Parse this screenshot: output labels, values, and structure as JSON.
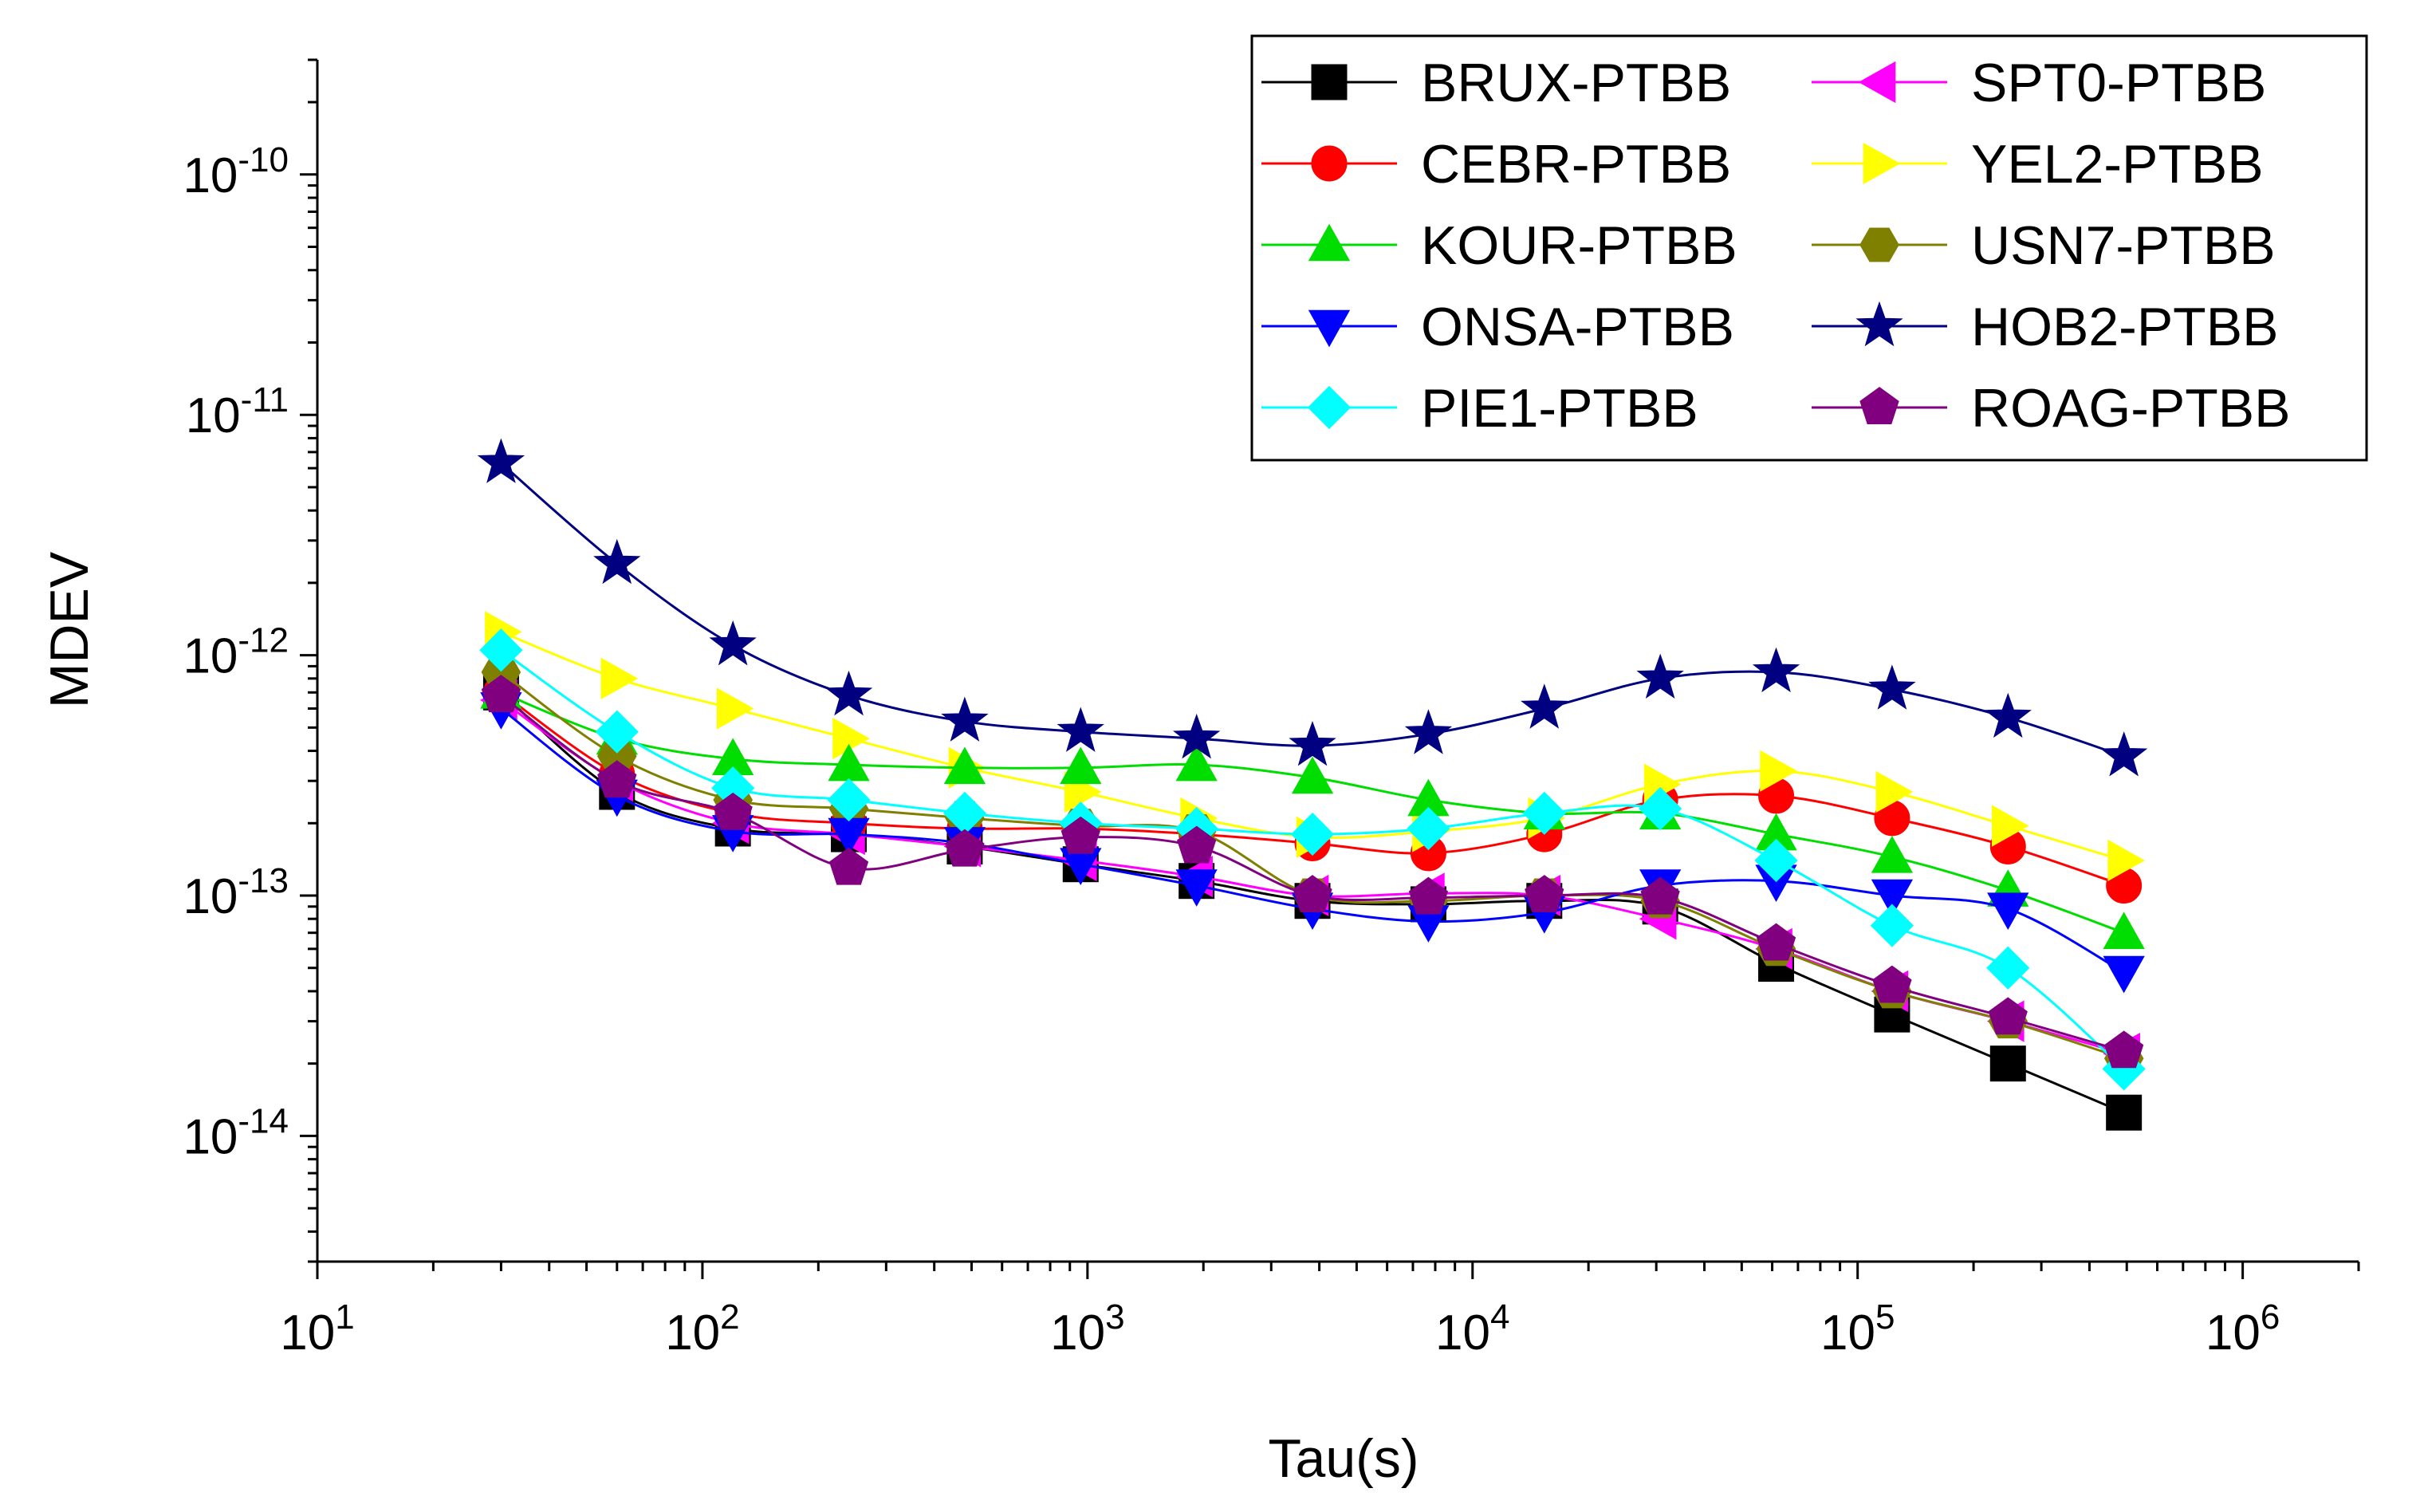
{
  "chart_data": {
    "type": "line",
    "xlabel": "Tau(s)",
    "ylabel": "MDEV",
    "xscale": "log",
    "yscale": "log",
    "xlim": [
      10,
      2000000
    ],
    "ylim": [
      3e-15,
      3e-10
    ],
    "x_ticks": [
      {
        "base": "10",
        "exp": "1"
      },
      {
        "base": "10",
        "exp": "2"
      },
      {
        "base": "10",
        "exp": "3"
      },
      {
        "base": "10",
        "exp": "4"
      },
      {
        "base": "10",
        "exp": "5"
      },
      {
        "base": "10",
        "exp": "6"
      }
    ],
    "y_ticks": [
      {
        "base": "10",
        "exp": "-14"
      },
      {
        "base": "10",
        "exp": "-13"
      },
      {
        "base": "10",
        "exp": "-12"
      },
      {
        "base": "10",
        "exp": "-11"
      },
      {
        "base": "10",
        "exp": "-10"
      }
    ],
    "x": [
      30,
      60,
      120,
      240,
      480,
      960,
      1920,
      3840,
      7680,
      15360,
      30720,
      61440,
      122880,
      245760,
      491520
    ],
    "legend_position": "top-right",
    "series": [
      {
        "name": "BRUX-PTBB",
        "color": "#000000",
        "marker": "square",
        "values": [
          7e-13,
          2.7e-13,
          1.9e-13,
          1.8e-13,
          1.6e-13,
          1.35e-13,
          1.15e-13,
          9.5e-14,
          9.2e-14,
          9.5e-14,
          9e-14,
          5.2e-14,
          3.2e-14,
          2e-14,
          1.25e-14
        ]
      },
      {
        "name": "SPT0-PTBB",
        "color": "#FF00FF",
        "marker": "triangle-left",
        "values": [
          6.5e-13,
          3e-13,
          2e-13,
          1.8e-13,
          1.6e-13,
          1.4e-13,
          1.2e-13,
          1e-13,
          1.02e-13,
          1e-13,
          8e-14,
          6e-14,
          4e-14,
          3e-14,
          2.2e-14
        ]
      },
      {
        "name": "CEBR-PTBB",
        "color": "#FF0000",
        "marker": "circle",
        "values": [
          7e-13,
          3.2e-13,
          2.2e-13,
          2e-13,
          1.9e-13,
          1.9e-13,
          1.8e-13,
          1.65e-13,
          1.5e-13,
          1.8e-13,
          2.5e-13,
          2.6e-13,
          2.1e-13,
          1.6e-13,
          1.1e-13
        ]
      },
      {
        "name": "YEL2-PTBB",
        "color": "#FFFF00",
        "marker": "triangle-right",
        "values": [
          1.25e-12,
          8e-13,
          6e-13,
          4.5e-13,
          3.4e-13,
          2.7e-13,
          2.1e-13,
          1.75e-13,
          1.85e-13,
          2.1e-13,
          2.9e-13,
          3.3e-13,
          2.7e-13,
          1.95e-13,
          1.4e-13
        ]
      },
      {
        "name": "KOUR-PTBB",
        "color": "#00DD00",
        "marker": "triangle-up",
        "values": [
          7e-13,
          4.5e-13,
          3.7e-13,
          3.5e-13,
          3.4e-13,
          3.4e-13,
          3.5e-13,
          3.1e-13,
          2.5e-13,
          2.2e-13,
          2.2e-13,
          1.8e-13,
          1.45e-13,
          1.05e-13,
          7e-14
        ]
      },
      {
        "name": "USN7-PTBB",
        "color": "#808000",
        "marker": "hexagon",
        "values": [
          8.5e-13,
          3.8e-13,
          2.5e-13,
          2.3e-13,
          2.1e-13,
          1.95e-13,
          1.85e-13,
          1e-13,
          9.5e-14,
          1e-13,
          9.5e-14,
          6e-14,
          4e-14,
          3e-14,
          2.1e-14
        ]
      },
      {
        "name": "ONSA-PTBB",
        "color": "#0000FF",
        "marker": "triangle-down",
        "values": [
          6e-13,
          2.6e-13,
          1.85e-13,
          1.8e-13,
          1.65e-13,
          1.35e-13,
          1.1e-13,
          8.8e-14,
          7.8e-14,
          8.5e-14,
          1.1e-13,
          1.15e-13,
          1e-13,
          8.8e-14,
          4.8e-14
        ]
      },
      {
        "name": "HOB2-PTBB",
        "color": "#000080",
        "marker": "star",
        "values": [
          6.3e-12,
          2.4e-12,
          1.1e-12,
          6.8e-13,
          5.3e-13,
          4.8e-13,
          4.5e-13,
          4.2e-13,
          4.7e-13,
          6e-13,
          8e-13,
          8.5e-13,
          7.2e-13,
          5.5e-13,
          3.8e-13
        ]
      },
      {
        "name": "PIE1-PTBB",
        "color": "#00FFFF",
        "marker": "diamond",
        "values": [
          1.05e-12,
          4.8e-13,
          2.8e-13,
          2.5e-13,
          2.2e-13,
          2e-13,
          1.9e-13,
          1.8e-13,
          1.9e-13,
          2.2e-13,
          2.3e-13,
          1.4e-13,
          7.5e-14,
          5e-14,
          1.9e-14
        ]
      },
      {
        "name": "ROAG-PTBB",
        "color": "#800080",
        "marker": "pentagon",
        "values": [
          6.8e-13,
          3e-13,
          2.2e-13,
          1.3e-13,
          1.55e-13,
          1.75e-13,
          1.6e-13,
          1e-13,
          9.8e-14,
          1e-13,
          9.8e-14,
          6.3e-14,
          4.2e-14,
          3.1e-14,
          2.25e-14
        ]
      }
    ]
  }
}
